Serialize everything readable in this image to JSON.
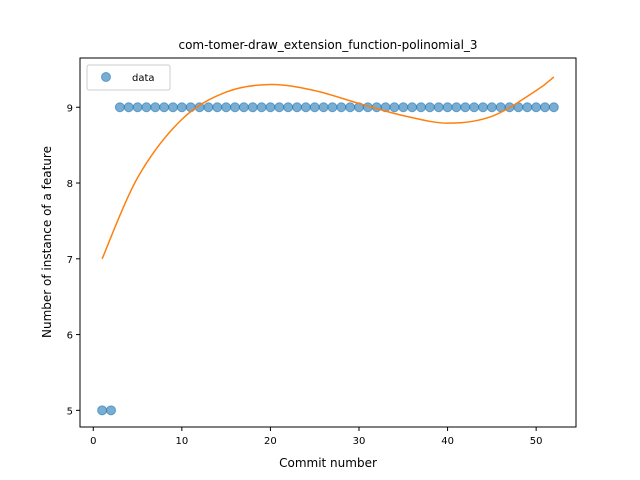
{
  "chart_data": {
    "type": "scatter",
    "title": "com-tomer-draw_extension_function-polinomial_3",
    "xlabel": "Commit number",
    "ylabel": "Number of instance of a feature",
    "xlim": [
      -1.5,
      54.5
    ],
    "ylim": [
      4.78,
      9.65
    ],
    "xticks": [
      0,
      10,
      20,
      30,
      40,
      50
    ],
    "yticks": [
      5,
      6,
      7,
      8,
      9
    ],
    "grid": false,
    "legend_position": "top-left",
    "series": [
      {
        "name": "data",
        "kind": "scatter",
        "color": "#1f77b4",
        "x": [
          1,
          2,
          3,
          4,
          5,
          6,
          7,
          8,
          9,
          10,
          11,
          12,
          13,
          14,
          15,
          16,
          17,
          18,
          19,
          20,
          21,
          22,
          23,
          24,
          25,
          26,
          27,
          28,
          29,
          30,
          31,
          32,
          33,
          34,
          35,
          36,
          37,
          38,
          39,
          40,
          41,
          42,
          43,
          44,
          45,
          46,
          47,
          48,
          49,
          50,
          51,
          52
        ],
        "y": [
          5,
          5,
          9,
          9,
          9,
          9,
          9,
          9,
          9,
          9,
          9,
          9,
          9,
          9,
          9,
          9,
          9,
          9,
          9,
          9,
          9,
          9,
          9,
          9,
          9,
          9,
          9,
          9,
          9,
          9,
          9,
          9,
          9,
          9,
          9,
          9,
          9,
          9,
          9,
          9,
          9,
          9,
          9,
          9,
          9,
          9,
          9,
          9,
          9,
          9,
          9,
          9
        ]
      },
      {
        "kind": "line",
        "color": "#ff7f0e",
        "x": [
          1,
          5,
          10,
          15,
          20,
          25,
          30,
          35,
          40,
          45,
          50,
          52
        ],
        "y": [
          7.0,
          8.07,
          8.84,
          9.2,
          9.3,
          9.22,
          9.05,
          8.89,
          8.79,
          8.88,
          9.22,
          9.4
        ]
      }
    ]
  }
}
